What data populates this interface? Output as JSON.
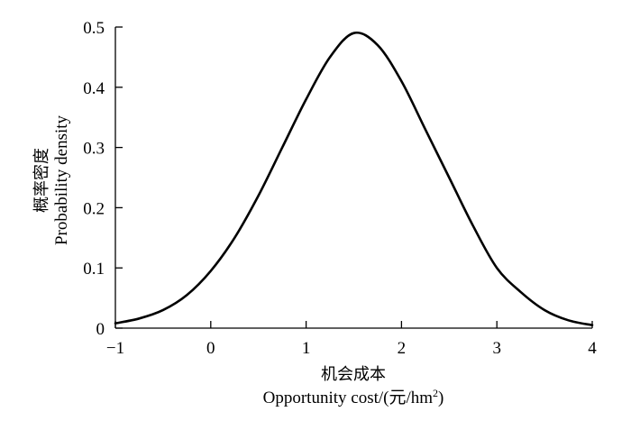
{
  "chart_data": {
    "type": "line",
    "xlabel_zh": "机会成本",
    "xlabel_en": "Opportunity cost/(元/hm",
    "xlabel_sup": "2",
    "xlabel_end": ")",
    "ylabel_zh": "概率密度",
    "ylabel_en": "Probability density",
    "xlim": [
      -1,
      4
    ],
    "ylim": [
      0,
      0.5
    ],
    "xticks": [
      "−1",
      "0",
      "1",
      "2",
      "3",
      "4"
    ],
    "yticks": [
      "0",
      "0.1",
      "0.2",
      "0.3",
      "0.4",
      "0.5"
    ],
    "series": [
      {
        "x": [
          -1,
          -0.75,
          -0.5,
          -0.25,
          0,
          0.25,
          0.5,
          0.75,
          1,
          1.25,
          1.5,
          1.75,
          2,
          2.25,
          2.5,
          2.75,
          3,
          3.25,
          3.5,
          3.75,
          4
        ],
        "y": [
          0.008,
          0.016,
          0.03,
          0.055,
          0.095,
          0.15,
          0.22,
          0.3,
          0.38,
          0.45,
          0.49,
          0.47,
          0.41,
          0.33,
          0.25,
          0.17,
          0.1,
          0.06,
          0.03,
          0.013,
          0.005
        ]
      }
    ]
  }
}
